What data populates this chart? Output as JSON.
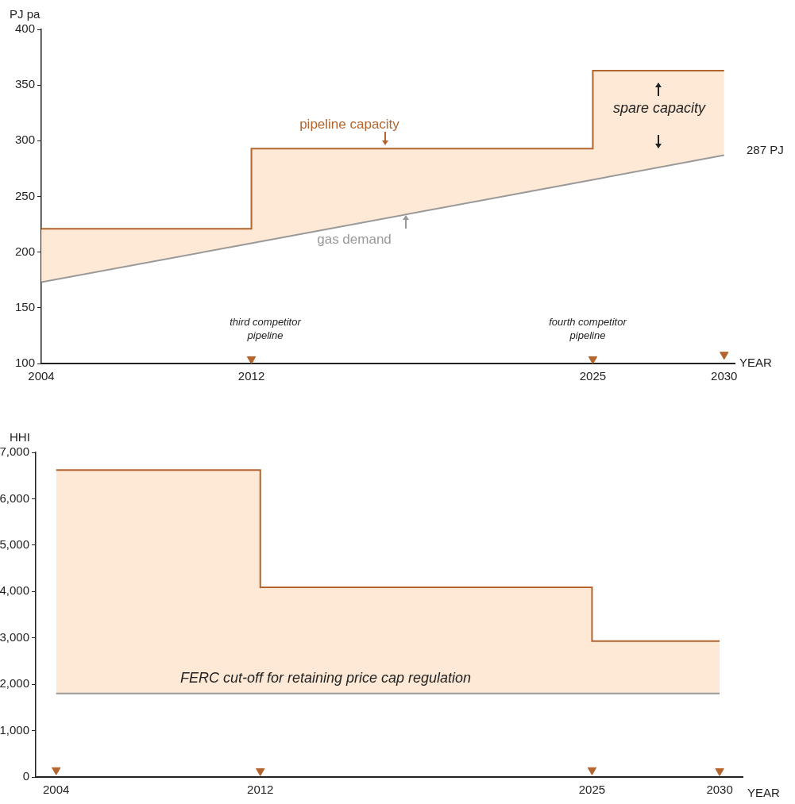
{
  "chart_data": [
    {
      "type": "step",
      "ylabel": "PJ pa",
      "xlabel": "YEAR",
      "xlim": [
        2004,
        2030.4
      ],
      "xticks": [
        2004,
        2012,
        2025,
        2030
      ],
      "ylim": [
        100,
        400
      ],
      "yticks": [
        100,
        150,
        200,
        250,
        300,
        350,
        400
      ],
      "grid": false,
      "legend": false,
      "series": [
        {
          "color": "#b4642d",
          "x": [
            2004,
            2012,
            2025,
            2030
          ],
          "values": [
            221,
            293,
            363,
            363
          ]
        },
        {
          "type": "line",
          "color": "#999999",
          "x": [
            2004,
            2012,
            2012,
            2025,
            2025,
            2030
          ],
          "values": [
            173,
            208,
            208,
            265,
            265,
            287
          ],
          "lower": [
            173,
            208,
            208,
            265,
            265,
            287
          ],
          "upper": [
            221,
            221,
            293,
            293,
            363,
            363
          ]
        },
        {
          "type": "scatter",
          "marker": "triangle",
          "color": "#b4642d",
          "x": [
            2012,
            2025,
            2030
          ],
          "values": [
            104,
            104,
            108
          ]
        }
      ],
      "annotations": [
        "pipeline capacity",
        "gas demand",
        "spare capacity",
        "287 PJ",
        "third competitor pipeline",
        "fourth competitor pipeline"
      ]
    },
    {
      "type": "step",
      "ylabel": "HHI",
      "xlabel": "YEAR",
      "xlim": [
        2003.2,
        2030.9
      ],
      "xticks": [
        2004,
        2012,
        2025,
        2030
      ],
      "ylim": [
        0,
        7000
      ],
      "yticks": [
        0,
        {
          "value": 1000,
          "label": "1,000"
        },
        {
          "value": 2000,
          "label": "2,000"
        },
        {
          "value": 3000,
          "label": "3,000"
        },
        {
          "value": 4000,
          "label": "4,000"
        },
        {
          "value": 5000,
          "label": "5,000"
        },
        {
          "value": 6000,
          "label": "6,000"
        },
        {
          "value": 7000,
          "label": "7,000"
        }
      ],
      "grid": false,
      "legend": false,
      "series": [
        {
          "color": "#b4642d",
          "x": [
            2004,
            2012,
            2025,
            2030
          ],
          "values": [
            6620,
            4090,
            2930,
            2930
          ]
        },
        {
          "type": "line",
          "color": "#999999",
          "x": [
            2004,
            2012,
            2012,
            2025,
            2025,
            2030
          ],
          "values": [
            1800,
            1800,
            1800,
            1800,
            1800,
            1800
          ],
          "lower": [
            1800,
            1800,
            1800,
            1800,
            1800,
            1800
          ],
          "upper": [
            6620,
            6620,
            4090,
            4090,
            2930,
            2930
          ]
        },
        {
          "type": "scatter",
          "marker": "triangle",
          "color": "#b4642d",
          "x": [
            2004,
            2012,
            2025,
            2030
          ],
          "values": [
            150,
            130,
            150,
            130
          ]
        }
      ],
      "annotations": [
        "FERC cut-off for retaining price cap regulation"
      ]
    }
  ]
}
